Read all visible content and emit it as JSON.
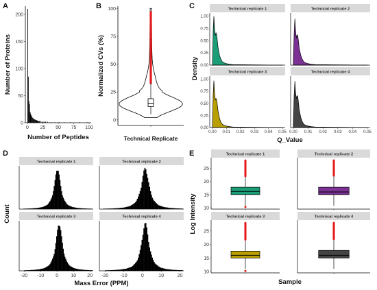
{
  "chart_data": [
    {
      "panel": "A",
      "type": "bar",
      "xlabel": "Number of Peptides",
      "ylabel": "Number of Proteins",
      "xlim": [
        0,
        100
      ],
      "ylim": [
        0,
        215
      ],
      "x_ticks": [
        0,
        25,
        50,
        75,
        100
      ],
      "y_ticks": [
        0,
        50,
        100,
        150,
        200
      ],
      "x": [
        1,
        2,
        3,
        4,
        5,
        6,
        7,
        8,
        9,
        10,
        11,
        12,
        13,
        14,
        15,
        16,
        17,
        18,
        19,
        20,
        22,
        24,
        26,
        28,
        30,
        33,
        36,
        40,
        45,
        52,
        60,
        70,
        85,
        97
      ],
      "values": [
        210,
        85,
        40,
        34,
        20,
        16,
        13,
        11,
        9,
        8,
        7,
        6,
        6,
        5,
        5,
        4,
        4,
        3,
        3,
        3,
        3,
        2,
        2,
        2,
        2,
        2,
        1,
        1,
        1,
        1,
        1,
        1,
        1,
        1
      ]
    },
    {
      "panel": "B",
      "type": "violin",
      "xlabel": "Technical Replicate",
      "ylabel": "Normalized CVs (%)",
      "categories": [
        "Technical Replicate"
      ],
      "ylim": [
        -5,
        102
      ],
      "y_ticks": [
        0,
        25,
        50,
        75,
        100
      ],
      "box": {
        "min": 5,
        "q1": 12,
        "median": 15,
        "q3": 19,
        "max": 33
      },
      "outliers": {
        "from": 33,
        "to": 97
      },
      "outlier_color": "#e41a1c"
    },
    {
      "panel": "C",
      "type": "area",
      "xlabel": "Q_Value",
      "ylabel": "Density",
      "xlim": [
        0,
        0.05
      ],
      "ylim": [
        0,
        1.05
      ],
      "x_ticks": [
        "0.00",
        "0.01",
        "0.02",
        "0.03",
        "0.04",
        "0.05"
      ],
      "y_ticks": [
        "0.00",
        "0.25",
        "0.50",
        "0.75",
        "1.00"
      ],
      "x": [
        0,
        0.0005,
        0.001,
        0.0015,
        0.002,
        0.0025,
        0.003,
        0.004,
        0.005,
        0.006,
        0.007,
        0.008,
        0.01,
        0.012,
        0.015,
        0.02,
        0.03,
        0.04,
        0.05
      ],
      "series": [
        {
          "name": "Technical replicate 1",
          "color": "#1b9e77",
          "values": [
            0.05,
            0.7,
            1.0,
            0.72,
            0.6,
            0.66,
            0.62,
            0.35,
            0.2,
            0.12,
            0.07,
            0.05,
            0.03,
            0.02,
            0.01,
            0.008,
            0.005,
            0.003,
            0.002
          ]
        },
        {
          "name": "Technical replicate 2",
          "color": "#7b3294",
          "values": [
            0.05,
            0.65,
            0.95,
            0.7,
            0.55,
            0.62,
            0.6,
            0.34,
            0.2,
            0.12,
            0.07,
            0.05,
            0.03,
            0.02,
            0.01,
            0.008,
            0.005,
            0.003,
            0.002
          ]
        },
        {
          "name": "Technical replicate 3",
          "color": "#b8a000",
          "values": [
            0.05,
            0.68,
            0.97,
            0.7,
            0.57,
            0.6,
            0.58,
            0.33,
            0.19,
            0.11,
            0.07,
            0.05,
            0.03,
            0.02,
            0.01,
            0.008,
            0.005,
            0.003,
            0.002
          ]
        },
        {
          "name": "Technical replicate 4",
          "color": "#444444",
          "values": [
            0.05,
            0.66,
            0.96,
            0.72,
            0.6,
            0.66,
            0.64,
            0.36,
            0.21,
            0.12,
            0.07,
            0.05,
            0.03,
            0.02,
            0.01,
            0.008,
            0.005,
            0.003,
            0.002
          ]
        }
      ]
    },
    {
      "panel": "D",
      "type": "bar",
      "xlabel": "Mass Error (PPM)",
      "ylabel": "Count",
      "xlim": [
        -23,
        22
      ],
      "x_ticks": [
        -20,
        -10,
        0,
        10,
        20
      ],
      "series": [
        {
          "name": "Technical replicate 1",
          "center": 0.0,
          "scale": 2.2
        },
        {
          "name": "Technical replicate 2",
          "center": 1.2,
          "scale": 2.4
        },
        {
          "name": "Technical replicate 3",
          "center": 1.0,
          "scale": 2.3
        },
        {
          "name": "Technical replicate 4",
          "center": 1.2,
          "scale": 2.3
        }
      ]
    },
    {
      "panel": "E",
      "type": "box",
      "xlabel": "Sample",
      "ylabel": "Log Intensity",
      "ylim": [
        9.5,
        29
      ],
      "y_ticks": [
        10,
        15,
        20,
        25
      ],
      "outlier_color": "#e41a1c",
      "series": [
        {
          "name": "Technical replicate 1",
          "color": "#1b9e77",
          "min": 10.5,
          "q1": 15.0,
          "median": 16.2,
          "q3": 17.8,
          "max": 21.8,
          "outliers_from": 22.0,
          "outliers_to": 28.0,
          "low_outlier": 10.3
        },
        {
          "name": "Technical replicate 2",
          "color": "#7b3294",
          "min": 10.8,
          "q1": 15.0,
          "median": 16.0,
          "q3": 17.8,
          "max": 21.9,
          "outliers_from": 22.2,
          "outliers_to": 28.0,
          "low_outlier": null
        },
        {
          "name": "Technical replicate 3",
          "color": "#b8a000",
          "min": 11.0,
          "q1": 15.0,
          "median": 16.0,
          "q3": 17.5,
          "max": 21.5,
          "outliers_from": 21.8,
          "outliers_to": 28.0,
          "low_outlier": 10.2
        },
        {
          "name": "Technical replicate 4",
          "color": "#444444",
          "min": 11.0,
          "q1": 15.0,
          "median": 16.0,
          "q3": 17.8,
          "max": 21.7,
          "outliers_from": 22.0,
          "outliers_to": 28.0,
          "low_outlier": null
        }
      ]
    }
  ]
}
